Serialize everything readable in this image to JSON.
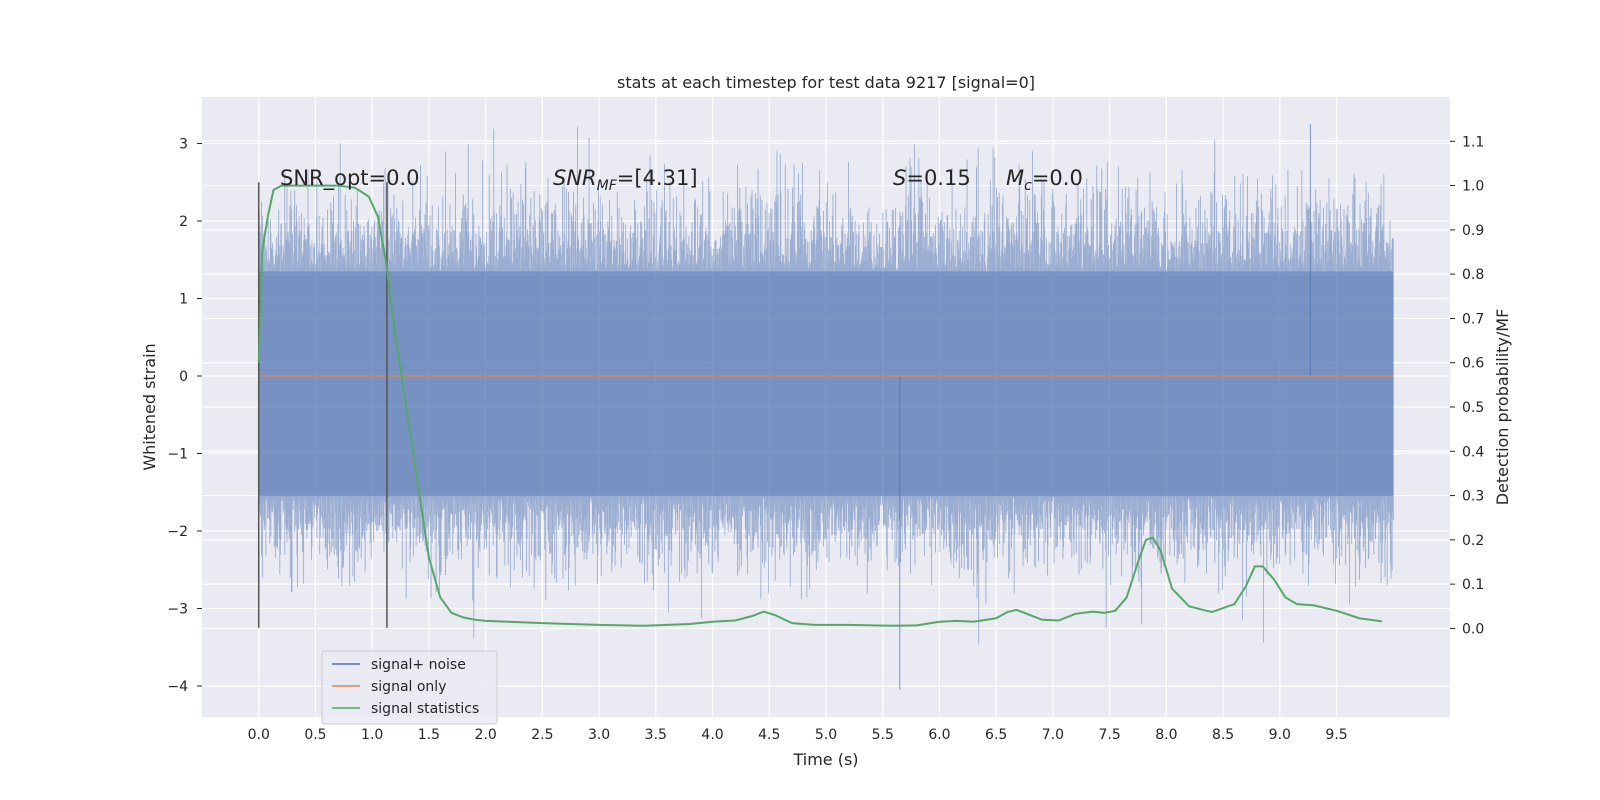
{
  "chart_data": {
    "type": "line",
    "title": "stats at each timestep for test data 9217 [signal=0]",
    "xlabel": "Time (s)",
    "ylabel": "Whitened strain",
    "y2label": "Detection probability/MF",
    "xlim": [
      -0.5,
      10.5
    ],
    "ylim": [
      -4.4,
      3.6
    ],
    "y2lim": [
      -0.2,
      1.2
    ],
    "x_ticks": [
      0.0,
      0.5,
      1.0,
      1.5,
      2.0,
      2.5,
      3.0,
      3.5,
      4.0,
      4.5,
      5.0,
      5.5,
      6.0,
      6.5,
      7.0,
      7.5,
      8.0,
      8.5,
      9.0,
      9.5
    ],
    "x_tick_labels": [
      "0.0",
      "0.5",
      "1.0",
      "1.5",
      "2.0",
      "2.5",
      "3.0",
      "3.5",
      "4.0",
      "4.5",
      "5.0",
      "5.5",
      "6.0",
      "6.5",
      "7.0",
      "7.5",
      "8.0",
      "8.5",
      "9.0",
      "9.5"
    ],
    "y_ticks": [
      3,
      2,
      1,
      0,
      -1,
      -2,
      -3,
      -4
    ],
    "y_tick_labels": [
      "3",
      "2",
      "1",
      "0",
      "−1",
      "−2",
      "−3",
      "−4"
    ],
    "y2_ticks": [
      1.1,
      1.0,
      0.9,
      0.8,
      0.7,
      0.6,
      0.5,
      0.4,
      0.3,
      0.2,
      0.1,
      0.0
    ],
    "y2_tick_labels": [
      "1.1",
      "1.0",
      "0.9",
      "0.8",
      "0.7",
      "0.6",
      "0.5",
      "0.4",
      "0.3",
      "0.2",
      "0.1",
      "0.0"
    ],
    "grid": true,
    "legend_placement": "lower-left",
    "annotations": {
      "snr_opt": "SNR_opt=0.0",
      "snr_mf_sym": "SNR",
      "snr_mf_sub": "MF",
      "snr_mf_val": "=[4.31]",
      "s_sym": "S",
      "s_val": "=0.15",
      "mc_sym": "M",
      "mc_sub": "c",
      "mc_val": "=0.0"
    },
    "vlines": {
      "x": [
        0.0,
        1.13
      ],
      "y_range": [
        -3.25,
        2.5
      ]
    },
    "series": [
      {
        "name": "signal+ noise",
        "color": "#4c72b0",
        "kind": "noise",
        "x_range": [
          0.0,
          10.0
        ],
        "sample_count": 2048,
        "core_band": [
          -1.55,
          1.35
        ],
        "extremes": {
          "max": 3.25,
          "min": -4.05
        }
      },
      {
        "name": "signal only",
        "color": "#dd8452",
        "kind": "flat",
        "x": [
          0.0,
          10.0
        ],
        "y": [
          0.0,
          0.0
        ]
      },
      {
        "name": "signal statistics",
        "color": "#55a868",
        "kind": "probability",
        "axis": "right",
        "x": [
          0.0,
          0.03,
          0.08,
          0.13,
          0.2,
          0.3,
          0.5,
          0.7,
          0.85,
          0.97,
          1.05,
          1.12,
          1.2,
          1.3,
          1.4,
          1.5,
          1.6,
          1.7,
          1.8,
          1.9,
          2.0,
          2.2,
          2.5,
          3.0,
          3.4,
          3.8,
          4.0,
          4.2,
          4.35,
          4.45,
          4.55,
          4.7,
          4.9,
          5.2,
          5.6,
          5.8,
          6.0,
          6.15,
          6.3,
          6.5,
          6.6,
          6.68,
          6.75,
          6.9,
          7.05,
          7.2,
          7.35,
          7.45,
          7.55,
          7.65,
          7.75,
          7.82,
          7.88,
          7.95,
          8.05,
          8.2,
          8.4,
          8.6,
          8.7,
          8.78,
          8.85,
          8.95,
          9.05,
          9.15,
          9.3,
          9.5,
          9.7,
          9.9
        ],
        "y": [
          0.6,
          0.85,
          0.93,
          0.99,
          1.0,
          1.0,
          1.0,
          1.0,
          0.995,
          0.975,
          0.93,
          0.83,
          0.67,
          0.5,
          0.33,
          0.16,
          0.07,
          0.035,
          0.025,
          0.02,
          0.017,
          0.015,
          0.012,
          0.008,
          0.006,
          0.01,
          0.015,
          0.018,
          0.028,
          0.038,
          0.03,
          0.012,
          0.008,
          0.008,
          0.006,
          0.007,
          0.015,
          0.017,
          0.015,
          0.023,
          0.037,
          0.042,
          0.035,
          0.02,
          0.018,
          0.033,
          0.038,
          0.035,
          0.04,
          0.07,
          0.15,
          0.2,
          0.205,
          0.175,
          0.09,
          0.05,
          0.037,
          0.055,
          0.095,
          0.14,
          0.14,
          0.11,
          0.07,
          0.055,
          0.052,
          0.04,
          0.023,
          0.016
        ]
      }
    ]
  }
}
